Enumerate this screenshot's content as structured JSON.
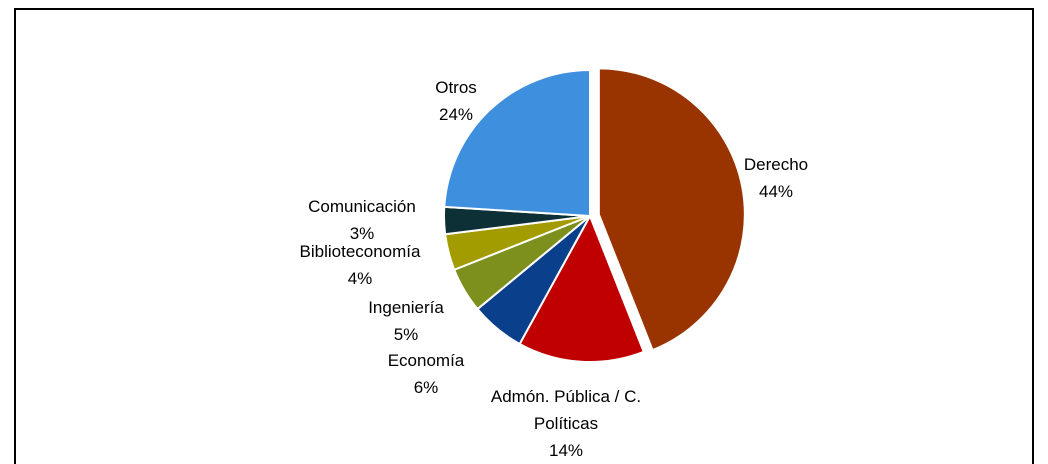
{
  "chart_data": {
    "type": "pie",
    "categories": [
      "Derecho",
      "Admón. Pública / C. Políticas",
      "Economía",
      "Ingeniería",
      "Biblioteconomía",
      "Comunicación",
      "Otros"
    ],
    "values": [
      44,
      14,
      6,
      5,
      4,
      3,
      24
    ],
    "value_labels": [
      "44%",
      "14%",
      "6%",
      "5%",
      "4%",
      "3%",
      "24%"
    ],
    "colors": [
      "#993300",
      "#c00000",
      "#0a3f8c",
      "#7d8f1c",
      "#a39c00",
      "#0d2f36",
      "#3f8fdf"
    ]
  }
}
